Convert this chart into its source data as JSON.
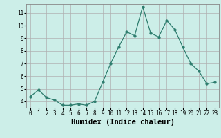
{
  "x": [
    0,
    1,
    2,
    3,
    4,
    5,
    6,
    7,
    8,
    9,
    10,
    11,
    12,
    13,
    14,
    15,
    16,
    17,
    18,
    19,
    20,
    21,
    22,
    23
  ],
  "y": [
    4.4,
    4.9,
    4.3,
    4.1,
    3.7,
    3.7,
    3.8,
    3.7,
    4.0,
    5.5,
    7.0,
    8.3,
    9.5,
    9.2,
    11.5,
    9.4,
    9.1,
    10.4,
    9.7,
    8.3,
    7.0,
    6.4,
    5.4,
    5.5
  ],
  "xlabel": "Humidex (Indice chaleur)",
  "xlim": [
    -0.5,
    23.5
  ],
  "ylim": [
    3.5,
    11.7
  ],
  "yticks": [
    4,
    5,
    6,
    7,
    8,
    9,
    10,
    11
  ],
  "xtick_labels": [
    "0",
    "1",
    "2",
    "3",
    "4",
    "5",
    "6",
    "7",
    "8",
    "9",
    "10",
    "11",
    "12",
    "13",
    "14",
    "15",
    "16",
    "17",
    "18",
    "19",
    "20",
    "21",
    "22",
    "23"
  ],
  "line_color": "#2e7d6e",
  "marker_size": 2.5,
  "bg_color": "#cceee8",
  "grid_color": "#b0b0b0",
  "xlabel_fontsize": 7.5,
  "tick_fontsize": 5.5
}
